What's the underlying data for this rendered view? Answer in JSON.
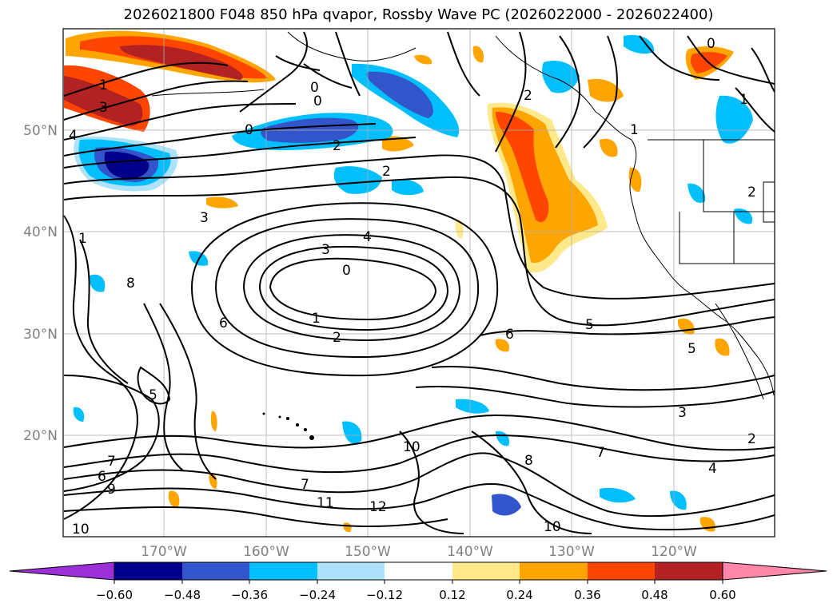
{
  "title": "2026021800 F048 850 hPa qvapor, Rossby Wave PC (2026022000 - 2026022400)",
  "lat_labels": [
    "50°N",
    "40°N",
    "30°N",
    "20°N"
  ],
  "lon_labels": [
    "170°W",
    "160°W",
    "150°W",
    "140°W",
    "130°W",
    "120°W"
  ],
  "contour_labels": [
    "1",
    "3",
    "4",
    "0",
    "2",
    "2",
    "0",
    "0",
    "2",
    "2",
    "1",
    "3",
    "4",
    "3",
    "0",
    "1",
    "2",
    "6",
    "6",
    "5",
    "5",
    "3",
    "2",
    "4",
    "12",
    "11",
    "10",
    "7",
    "8",
    "10",
    "7",
    "6",
    "9",
    "10",
    "7",
    "5",
    "8",
    "1",
    "0",
    "1"
  ],
  "colorbar": {
    "ticks": [
      "−0.60",
      "−0.48",
      "−0.36",
      "−0.24",
      "−0.12",
      "0.12",
      "0.24",
      "0.36",
      "0.48",
      "0.60"
    ],
    "colors": {
      "under": "#9b30d9",
      "c1": "#00008b",
      "c2": "#3355cc",
      "c3": "#00bfff",
      "c4": "#aee2fa",
      "c5": "#ffffff",
      "c6": "#ffe98a",
      "c7": "#ffa500",
      "c8": "#ff4500",
      "c9": "#b22222",
      "over": "#ff88aa"
    }
  }
}
